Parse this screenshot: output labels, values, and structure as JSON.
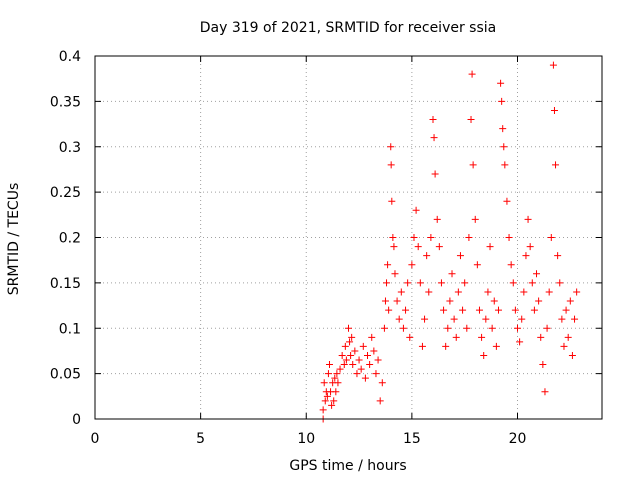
{
  "chart_data": {
    "type": "scatter",
    "title": "Day 319 of 2021, SRMTID for receiver ssia",
    "xlabel": "GPS time / hours",
    "ylabel": "SRMTID / TECUs",
    "xlim": [
      0,
      24
    ],
    "ylim": [
      0,
      0.4
    ],
    "xticks": [
      "0",
      "5",
      "10",
      "15",
      "20"
    ],
    "yticks": [
      "0",
      "0.05",
      "0.1",
      "0.15",
      "0.2",
      "0.25",
      "0.3",
      "0.35",
      "0.4"
    ],
    "grid": true,
    "marker": "+",
    "color": "#ff0000",
    "series": [
      {
        "name": "SRMTID",
        "points": [
          [
            10.8,
            0.0
          ],
          [
            10.8,
            0.01
          ],
          [
            10.85,
            0.04
          ],
          [
            10.9,
            0.02
          ],
          [
            10.95,
            0.03
          ],
          [
            11.0,
            0.025
          ],
          [
            11.05,
            0.05
          ],
          [
            11.1,
            0.06
          ],
          [
            11.15,
            0.03
          ],
          [
            11.2,
            0.015
          ],
          [
            11.25,
            0.04
          ],
          [
            11.3,
            0.02
          ],
          [
            11.35,
            0.045
          ],
          [
            11.4,
            0.03
          ],
          [
            11.45,
            0.05
          ],
          [
            11.5,
            0.04
          ],
          [
            11.6,
            0.055
          ],
          [
            11.7,
            0.07
          ],
          [
            11.8,
            0.06
          ],
          [
            11.85,
            0.08
          ],
          [
            11.9,
            0.065
          ],
          [
            12.0,
            0.1
          ],
          [
            12.05,
            0.085
          ],
          [
            12.1,
            0.07
          ],
          [
            12.15,
            0.09
          ],
          [
            12.2,
            0.06
          ],
          [
            12.3,
            0.075
          ],
          [
            12.4,
            0.05
          ],
          [
            12.5,
            0.065
          ],
          [
            12.6,
            0.055
          ],
          [
            12.7,
            0.08
          ],
          [
            12.8,
            0.045
          ],
          [
            12.9,
            0.07
          ],
          [
            13.0,
            0.06
          ],
          [
            13.1,
            0.09
          ],
          [
            13.2,
            0.075
          ],
          [
            13.3,
            0.05
          ],
          [
            13.4,
            0.065
          ],
          [
            13.5,
            0.02
          ],
          [
            13.6,
            0.04
          ],
          [
            13.7,
            0.1
          ],
          [
            13.75,
            0.13
          ],
          [
            13.8,
            0.15
          ],
          [
            13.85,
            0.17
          ],
          [
            13.9,
            0.12
          ],
          [
            14.0,
            0.3
          ],
          [
            14.02,
            0.28
          ],
          [
            14.05,
            0.24
          ],
          [
            14.1,
            0.2
          ],
          [
            14.15,
            0.19
          ],
          [
            14.2,
            0.16
          ],
          [
            14.3,
            0.13
          ],
          [
            14.4,
            0.11
          ],
          [
            14.5,
            0.14
          ],
          [
            14.6,
            0.1
          ],
          [
            14.7,
            0.12
          ],
          [
            14.8,
            0.15
          ],
          [
            14.9,
            0.09
          ],
          [
            15.0,
            0.17
          ],
          [
            15.1,
            0.2
          ],
          [
            15.2,
            0.23
          ],
          [
            15.3,
            0.19
          ],
          [
            15.4,
            0.15
          ],
          [
            15.5,
            0.08
          ],
          [
            15.6,
            0.11
          ],
          [
            15.7,
            0.18
          ],
          [
            15.8,
            0.14
          ],
          [
            15.9,
            0.2
          ],
          [
            16.0,
            0.33
          ],
          [
            16.05,
            0.31
          ],
          [
            16.1,
            0.27
          ],
          [
            16.2,
            0.22
          ],
          [
            16.3,
            0.19
          ],
          [
            16.4,
            0.15
          ],
          [
            16.5,
            0.12
          ],
          [
            16.6,
            0.08
          ],
          [
            16.7,
            0.1
          ],
          [
            16.8,
            0.13
          ],
          [
            16.9,
            0.16
          ],
          [
            17.0,
            0.11
          ],
          [
            17.1,
            0.09
          ],
          [
            17.2,
            0.14
          ],
          [
            17.3,
            0.18
          ],
          [
            17.4,
            0.12
          ],
          [
            17.5,
            0.15
          ],
          [
            17.6,
            0.1
          ],
          [
            17.7,
            0.2
          ],
          [
            17.8,
            0.33
          ],
          [
            17.85,
            0.38
          ],
          [
            17.9,
            0.28
          ],
          [
            18.0,
            0.22
          ],
          [
            18.1,
            0.17
          ],
          [
            18.2,
            0.12
          ],
          [
            18.3,
            0.09
          ],
          [
            18.4,
            0.07
          ],
          [
            18.5,
            0.11
          ],
          [
            18.6,
            0.14
          ],
          [
            18.7,
            0.19
          ],
          [
            18.8,
            0.1
          ],
          [
            18.9,
            0.13
          ],
          [
            19.0,
            0.08
          ],
          [
            19.1,
            0.12
          ],
          [
            19.2,
            0.37
          ],
          [
            19.25,
            0.35
          ],
          [
            19.3,
            0.32
          ],
          [
            19.35,
            0.3
          ],
          [
            19.4,
            0.28
          ],
          [
            19.5,
            0.24
          ],
          [
            19.6,
            0.2
          ],
          [
            19.7,
            0.17
          ],
          [
            19.8,
            0.15
          ],
          [
            19.9,
            0.12
          ],
          [
            20.0,
            0.1
          ],
          [
            20.1,
            0.085
          ],
          [
            20.2,
            0.11
          ],
          [
            20.3,
            0.14
          ],
          [
            20.4,
            0.18
          ],
          [
            20.5,
            0.22
          ],
          [
            20.6,
            0.19
          ],
          [
            20.7,
            0.15
          ],
          [
            20.8,
            0.12
          ],
          [
            20.9,
            0.16
          ],
          [
            21.0,
            0.13
          ],
          [
            21.1,
            0.09
          ],
          [
            21.2,
            0.06
          ],
          [
            21.3,
            0.03
          ],
          [
            21.4,
            0.1
          ],
          [
            21.5,
            0.14
          ],
          [
            21.6,
            0.2
          ],
          [
            21.7,
            0.39
          ],
          [
            21.75,
            0.34
          ],
          [
            21.8,
            0.28
          ],
          [
            21.9,
            0.18
          ],
          [
            22.0,
            0.15
          ],
          [
            22.1,
            0.11
          ],
          [
            22.2,
            0.08
          ],
          [
            22.3,
            0.12
          ],
          [
            22.4,
            0.09
          ],
          [
            22.5,
            0.13
          ],
          [
            22.6,
            0.07
          ],
          [
            22.7,
            0.11
          ],
          [
            22.8,
            0.14
          ]
        ]
      }
    ]
  }
}
